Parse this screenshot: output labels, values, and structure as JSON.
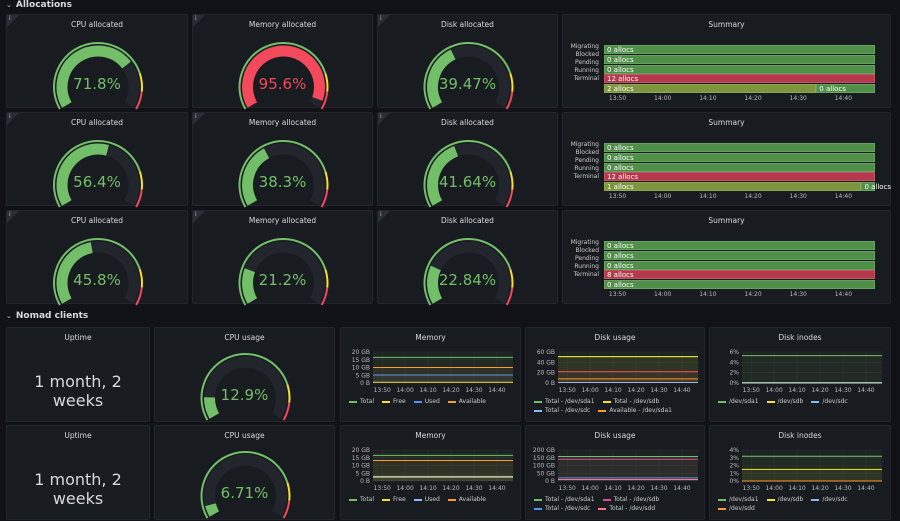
{
  "sections": {
    "allocations": "Allocations",
    "nomad_clients": "Nomad clients"
  },
  "info_icon": "i",
  "threshold_colors": {
    "ok": "#73bf69",
    "warn": "#fade2a",
    "crit": "#f2495c"
  },
  "allocations": {
    "rows": [
      {
        "gauges": [
          {
            "title": "CPU allocated",
            "value": 71.8,
            "display": "71.8%"
          },
          {
            "title": "Memory allocated",
            "value": 95.6,
            "display": "95.6%"
          },
          {
            "title": "Disk allocated",
            "value": 39.47,
            "display": "39.47%"
          }
        ],
        "summary": {
          "title": "Summary",
          "labels": [
            "Migrating",
            "Blocked",
            "Pending",
            "Running",
            "Terminal"
          ],
          "bars": [
            [
              {
                "text": "0 allocs",
                "state": "ok",
                "from": "13:47",
                "to": "14:47"
              }
            ],
            [
              {
                "text": "0 allocs",
                "state": "ok",
                "from": "13:47",
                "to": "14:47"
              }
            ],
            [
              {
                "text": "0 allocs",
                "state": "ok",
                "from": "13:47",
                "to": "14:47"
              }
            ],
            [
              {
                "text": "12 allocs",
                "state": "crit",
                "from": "13:47",
                "to": "14:47"
              }
            ],
            [
              {
                "text": "2 allocs",
                "state": "mid",
                "from": "13:47",
                "to": "14:34"
              },
              {
                "text": "0 allocs",
                "state": "ok",
                "from": "14:34",
                "to": "14:47"
              }
            ]
          ]
        }
      },
      {
        "gauges": [
          {
            "title": "CPU allocated",
            "value": 56.4,
            "display": "56.4%"
          },
          {
            "title": "Memory allocated",
            "value": 38.3,
            "display": "38.3%"
          },
          {
            "title": "Disk allocated",
            "value": 41.64,
            "display": "41.64%"
          }
        ],
        "summary": {
          "title": "Summary",
          "labels": [
            "Migrating",
            "Blocked",
            "Pending",
            "Running",
            "Terminal"
          ],
          "bars": [
            [
              {
                "text": "0 allocs",
                "state": "ok",
                "from": "13:47",
                "to": "14:47"
              }
            ],
            [
              {
                "text": "0 allocs",
                "state": "ok",
                "from": "13:47",
                "to": "14:47"
              }
            ],
            [
              {
                "text": "0 allocs",
                "state": "ok",
                "from": "13:47",
                "to": "14:47"
              }
            ],
            [
              {
                "text": "12 allocs",
                "state": "crit",
                "from": "13:47",
                "to": "14:47"
              }
            ],
            [
              {
                "text": "1 allocs",
                "state": "mid",
                "from": "13:47",
                "to": "14:44"
              },
              {
                "text": "0 allocs",
                "state": "ok",
                "from": "14:44",
                "to": "14:47"
              }
            ]
          ]
        }
      },
      {
        "gauges": [
          {
            "title": "CPU allocated",
            "value": 45.8,
            "display": "45.8%"
          },
          {
            "title": "Memory allocated",
            "value": 21.2,
            "display": "21.2%"
          },
          {
            "title": "Disk allocated",
            "value": 22.84,
            "display": "22.84%"
          }
        ],
        "summary": {
          "title": "Summary",
          "labels": [
            "Migrating",
            "Blocked",
            "Pending",
            "Running",
            "Terminal"
          ],
          "bars": [
            [
              {
                "text": "0 allocs",
                "state": "ok",
                "from": "13:47",
                "to": "14:47"
              }
            ],
            [
              {
                "text": "0 allocs",
                "state": "ok",
                "from": "13:47",
                "to": "14:47"
              }
            ],
            [
              {
                "text": "0 allocs",
                "state": "ok",
                "from": "13:47",
                "to": "14:47"
              }
            ],
            [
              {
                "text": "8 allocs",
                "state": "crit",
                "from": "13:47",
                "to": "14:47"
              }
            ],
            [
              {
                "text": "0 allocs",
                "state": "ok",
                "from": "13:47",
                "to": "14:47"
              }
            ]
          ]
        }
      }
    ],
    "time_ticks": [
      "13:50",
      "14:00",
      "14:10",
      "14:20",
      "14:30",
      "14:40"
    ]
  },
  "clients": {
    "time_ticks": [
      "13:50",
      "14:00",
      "14:10",
      "14:20",
      "14:30",
      "14:40"
    ],
    "rows": [
      {
        "uptime": {
          "title": "Uptime",
          "value": "1 month, 2 weeks"
        },
        "cpu": {
          "title": "CPU usage",
          "value": 12.9,
          "display": "12.9%"
        },
        "memory": {
          "title": "Memory",
          "yticks": [
            "0 B",
            "5 GB",
            "10 GB",
            "15 GB",
            "20 GB"
          ],
          "ymax": 20,
          "series": [
            {
              "name": "Total",
              "color": "#73bf69",
              "value": 16.5
            },
            {
              "name": "Free",
              "color": "#fade2a",
              "value": 0.5
            },
            {
              "name": "Used",
              "color": "#5794f2",
              "value": 5.2
            },
            {
              "name": "Available",
              "color": "#ff9830",
              "value": 10
            }
          ]
        },
        "disk": {
          "title": "Disk usage",
          "yticks": [
            "0 B",
            "20 GB",
            "40 GB",
            "60 GB"
          ],
          "ymax": 60,
          "series": [
            {
              "name": "Total - /dev/sda1",
              "color": "#73bf69",
              "value": 51
            },
            {
              "name": "Total - /dev/sdb",
              "color": "#fade2a",
              "value": 51
            },
            {
              "name": "Total - /dev/sdc",
              "color": "#8ab8ff",
              "value": 1
            },
            {
              "name": "Available - /dev/sda1",
              "color": "#ff9830",
              "value": 8
            },
            {
              "name": "",
              "color": "#f2495c",
              "value": 22
            }
          ]
        },
        "inodes": {
          "title": "Disk inodes",
          "yticks": [
            "0%",
            "2%",
            "4%",
            "6%"
          ],
          "ymax": 6,
          "series": [
            {
              "name": "/dev/sda1",
              "color": "#73bf69",
              "value": 5.3
            },
            {
              "name": "/dev/sdb",
              "color": "#fade2a",
              "value": 0
            },
            {
              "name": "/dev/sdc",
              "color": "#8ab8ff",
              "value": 0.1
            }
          ]
        }
      },
      {
        "uptime": {
          "title": "Uptime",
          "value": "1 month, 2 weeks"
        },
        "cpu": {
          "title": "CPU usage",
          "value": 6.71,
          "display": "6.71%"
        },
        "memory": {
          "title": "Memory",
          "yticks": [
            "0 B",
            "5 GB",
            "10 GB",
            "15 GB",
            "20 GB"
          ],
          "ymax": 20,
          "series": [
            {
              "name": "Total",
              "color": "#73bf69",
              "value": 16.5
            },
            {
              "name": "Free",
              "color": "#fade2a",
              "value": 2.5
            },
            {
              "name": "Used",
              "color": "#8ab8ff",
              "value": 3
            },
            {
              "name": "Available",
              "color": "#ff9830",
              "value": 13.2
            }
          ]
        },
        "disk": {
          "title": "Disk usage",
          "yticks": [
            "0 B",
            "50 GB",
            "100 GB",
            "150 GB",
            "200 GB"
          ],
          "ymax": 200,
          "series": [
            {
              "name": "Total - /dev/sda1",
              "color": "#73bf69",
              "value": 158
            },
            {
              "name": "Total - /dev/sdb",
              "color": "#e0489f",
              "value": 140
            },
            {
              "name": "Total - /dev/sdc",
              "color": "#5794f2",
              "value": 20
            },
            {
              "name": "Total - /dev/sdd",
              "color": "#ff7383",
              "value": 10
            }
          ]
        },
        "inodes": {
          "title": "Disk inodes",
          "yticks": [
            "0%",
            "1%",
            "2%",
            "3%",
            "4%"
          ],
          "ymax": 4,
          "series": [
            {
              "name": "/dev/sda1",
              "color": "#73bf69",
              "value": 3.2
            },
            {
              "name": "/dev/sdb",
              "color": "#fade2a",
              "value": 1.5
            },
            {
              "name": "/dev/sdc",
              "color": "#8ab8ff",
              "value": 0
            },
            {
              "name": "/dev/sdd",
              "color": "#ff9830",
              "value": 0
            }
          ]
        }
      }
    ]
  }
}
